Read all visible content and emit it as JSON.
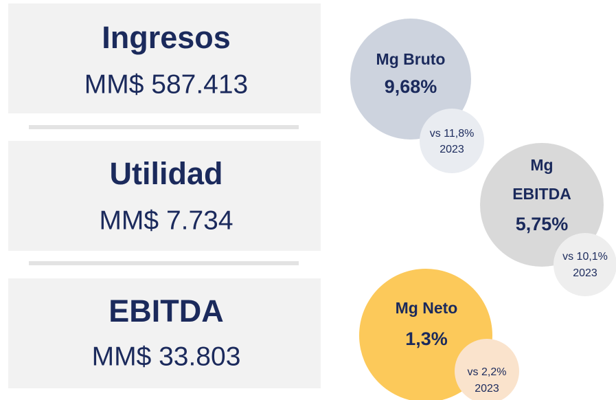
{
  "cards": [
    {
      "title": "Ingresos",
      "value": "MM$ 587.413"
    },
    {
      "title": "Utilidad",
      "value": "MM$ 7.734"
    },
    {
      "title": "EBITDA",
      "value": "MM$ 33.803"
    }
  ],
  "margins": [
    {
      "label": [
        "Mg Bruto"
      ],
      "value": "9,68%",
      "compare": [
        "vs 11,8%",
        "2023"
      ]
    },
    {
      "label": [
        "Mg",
        "EBITDA"
      ],
      "value": "5,75%",
      "compare": [
        "vs 10,1%",
        "2023"
      ]
    },
    {
      "label": [
        "Mg Neto"
      ],
      "value": "1,3%",
      "compare": [
        "vs 2,2%",
        "2023"
      ]
    }
  ]
}
